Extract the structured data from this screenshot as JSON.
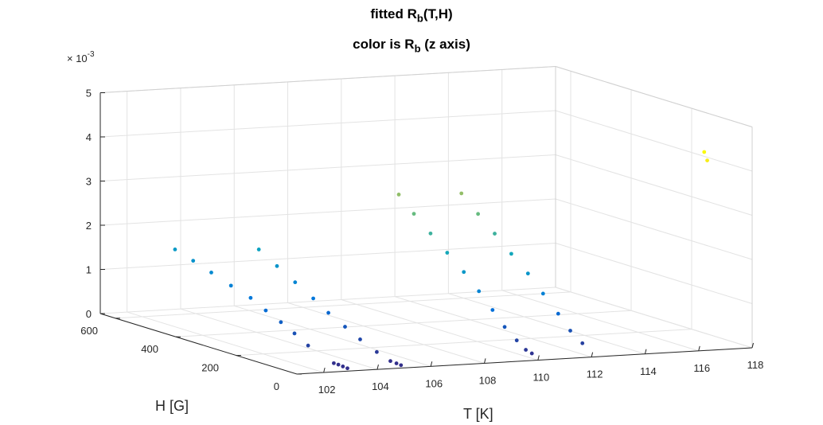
{
  "chart_data": {
    "type": "scatter3d",
    "title": {
      "prefix": "fitted R",
      "sub": "b",
      "suffix": "(T,H)"
    },
    "subtitle": {
      "prefix": "color is R",
      "sub": "b",
      "suffix": " (z axis)"
    },
    "xlabel": "T [K]",
    "ylabel": "H [G]",
    "zlabel": "",
    "z_exponent_label": "× 10",
    "z_exponent_power": "-3",
    "xlim": [
      101,
      118
    ],
    "ylim": [
      0,
      650
    ],
    "zlim": [
      0,
      5
    ],
    "x_ticks": [
      "102",
      "104",
      "106",
      "108",
      "110",
      "112",
      "114",
      "116",
      "118"
    ],
    "y_ticks": [
      "0",
      "200",
      "400",
      "600"
    ],
    "z_ticks": [
      "0",
      "1",
      "2",
      "3",
      "4",
      "5"
    ],
    "z_scale": 0.001,
    "grid": true,
    "colormap": "parula",
    "points": [
      {
        "x": 103,
        "y": 10,
        "z": 0.04
      },
      {
        "x": 103,
        "y": 25,
        "z": 0.05
      },
      {
        "x": 103,
        "y": 40,
        "z": 0.06
      },
      {
        "x": 103,
        "y": 55,
        "z": 0.06
      },
      {
        "x": 103,
        "y": 140,
        "z": 0.28
      },
      {
        "x": 103,
        "y": 185,
        "z": 0.46
      },
      {
        "x": 103,
        "y": 230,
        "z": 0.62
      },
      {
        "x": 103,
        "y": 280,
        "z": 0.78
      },
      {
        "x": 103,
        "y": 330,
        "z": 0.96
      },
      {
        "x": 103,
        "y": 395,
        "z": 1.1
      },
      {
        "x": 103,
        "y": 460,
        "z": 1.26
      },
      {
        "x": 103,
        "y": 520,
        "z": 1.4
      },
      {
        "x": 103,
        "y": 580,
        "z": 1.53
      },
      {
        "x": 105,
        "y": 10,
        "z": 0.04
      },
      {
        "x": 105,
        "y": 25,
        "z": 0.05
      },
      {
        "x": 105,
        "y": 45,
        "z": 0.06
      },
      {
        "x": 105,
        "y": 90,
        "z": 0.17
      },
      {
        "x": 105,
        "y": 145,
        "z": 0.34
      },
      {
        "x": 105,
        "y": 195,
        "z": 0.52
      },
      {
        "x": 105,
        "y": 250,
        "z": 0.72
      },
      {
        "x": 105,
        "y": 300,
        "z": 0.94
      },
      {
        "x": 105,
        "y": 360,
        "z": 1.18
      },
      {
        "x": 105,
        "y": 420,
        "z": 1.42
      },
      {
        "x": 105,
        "y": 480,
        "z": 1.67
      },
      {
        "x": 110,
        "y": 20,
        "z": 0.11
      },
      {
        "x": 110,
        "y": 40,
        "z": 0.15
      },
      {
        "x": 110,
        "y": 70,
        "z": 0.3
      },
      {
        "x": 110,
        "y": 110,
        "z": 0.52
      },
      {
        "x": 110,
        "y": 150,
        "z": 0.82
      },
      {
        "x": 110,
        "y": 195,
        "z": 1.15
      },
      {
        "x": 110,
        "y": 245,
        "z": 1.48
      },
      {
        "x": 110,
        "y": 300,
        "z": 1.8
      },
      {
        "x": 110,
        "y": 355,
        "z": 2.12
      },
      {
        "x": 110,
        "y": 410,
        "z": 2.45
      },
      {
        "x": 110,
        "y": 460,
        "z": 2.78
      },
      {
        "x": 112,
        "y": 30,
        "z": 0.25
      },
      {
        "x": 112,
        "y": 70,
        "z": 0.45
      },
      {
        "x": 112,
        "y": 110,
        "z": 0.75
      },
      {
        "x": 112,
        "y": 160,
        "z": 1.1
      },
      {
        "x": 112,
        "y": 210,
        "z": 1.45
      },
      {
        "x": 112,
        "y": 265,
        "z": 1.78
      },
      {
        "x": 112,
        "y": 320,
        "z": 2.12
      },
      {
        "x": 112,
        "y": 375,
        "z": 2.45
      },
      {
        "x": 112,
        "y": 430,
        "z": 2.8
      },
      {
        "x": 117,
        "y": 60,
        "z": 4.15
      },
      {
        "x": 117,
        "y": 70,
        "z": 4.32
      }
    ]
  }
}
